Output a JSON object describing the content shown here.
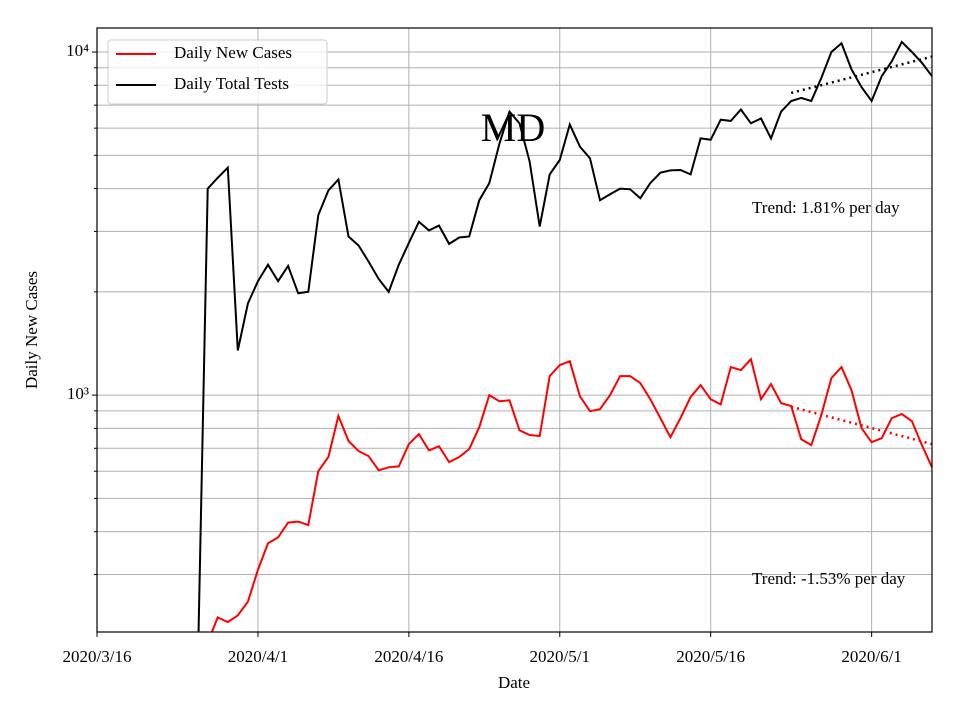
{
  "chart_data": {
    "type": "line",
    "title": "MD",
    "xlabel": "Date",
    "ylabel": "Daily New Cases",
    "yscale": "log",
    "grid": true,
    "legend": "upper left",
    "xlim": [
      "2020/3/16",
      "2020/6/7"
    ],
    "xticks": [
      "2020/3/16",
      "2020/4/1",
      "2020/4/16",
      "2020/5/1",
      "2020/5/16",
      "2020/6/1"
    ],
    "ylim": [
      204,
      11750
    ],
    "yticks": [
      {
        "value": 1000,
        "label": "10³"
      },
      {
        "value": 10000,
        "label": "10⁴"
      }
    ],
    "yminorticks": [
      300,
      400,
      500,
      600,
      700,
      800,
      900,
      2000,
      3000,
      4000,
      5000,
      6000,
      7000,
      8000,
      9000
    ],
    "x": [
      "2020/3/26",
      "2020/3/27",
      "2020/3/28",
      "2020/3/29",
      "2020/3/30",
      "2020/3/31",
      "2020/4/1",
      "2020/4/2",
      "2020/4/3",
      "2020/4/4",
      "2020/4/5",
      "2020/4/6",
      "2020/4/7",
      "2020/4/8",
      "2020/4/9",
      "2020/4/10",
      "2020/4/11",
      "2020/4/12",
      "2020/4/13",
      "2020/4/14",
      "2020/4/15",
      "2020/4/16",
      "2020/4/17",
      "2020/4/18",
      "2020/4/19",
      "2020/4/20",
      "2020/4/21",
      "2020/4/22",
      "2020/4/23",
      "2020/4/24",
      "2020/4/25",
      "2020/4/26",
      "2020/4/27",
      "2020/4/28",
      "2020/4/29",
      "2020/4/30",
      "2020/5/1",
      "2020/5/2",
      "2020/5/3",
      "2020/5/4",
      "2020/5/5",
      "2020/5/6",
      "2020/5/7",
      "2020/5/8",
      "2020/5/9",
      "2020/5/10",
      "2020/5/11",
      "2020/5/12",
      "2020/5/13",
      "2020/5/14",
      "2020/5/15",
      "2020/5/16",
      "2020/5/17",
      "2020/5/18",
      "2020/5/19",
      "2020/5/20",
      "2020/5/21",
      "2020/5/22",
      "2020/5/23",
      "2020/5/24",
      "2020/5/25",
      "2020/5/26",
      "2020/5/27",
      "2020/5/28",
      "2020/5/29",
      "2020/5/30",
      "2020/5/31",
      "2020/6/1",
      "2020/6/2",
      "2020/6/3",
      "2020/6/4",
      "2020/6/5",
      "2020/6/6",
      "2020/6/7"
    ],
    "series": [
      {
        "name": "Daily New Cases",
        "color": "#ff0000",
        "values": [
          null,
          190,
          225,
          218,
          228,
          250,
          310,
          370,
          385,
          425,
          428,
          418,
          600,
          660,
          870,
          735,
          687,
          664,
          604,
          616,
          620,
          720,
          770,
          690,
          710,
          638,
          660,
          696,
          807,
          1000,
          960,
          966,
          790,
          765,
          760,
          1136,
          1223,
          1256,
          993,
          898,
          910,
          1000,
          1136,
          1136,
          1084,
          973,
          857,
          754,
          857,
          987,
          1070,
          973,
          940,
          1207,
          1183,
          1273,
          973,
          1077,
          948,
          929,
          744,
          715,
          874,
          1121,
          1207,
          1034,
          801,
          729,
          749,
          857,
          881,
          840,
          715,
          616
        ]
      },
      {
        "name": "Daily Total Tests",
        "color": "#000000",
        "values": [
          150,
          4000,
          4300,
          4600,
          1350,
          1850,
          2150,
          2400,
          2150,
          2380,
          1980,
          2000,
          3350,
          3950,
          4250,
          2900,
          2730,
          2450,
          2180,
          2000,
          2400,
          2780,
          3200,
          3020,
          3120,
          2760,
          2880,
          2900,
          3700,
          4150,
          5400,
          6700,
          6200,
          4800,
          3100,
          4400,
          4850,
          6150,
          5300,
          4900,
          3700,
          3850,
          4000,
          3980,
          3750,
          4150,
          4450,
          4520,
          4530,
          4400,
          5600,
          5550,
          6350,
          6300,
          6800,
          6200,
          6400,
          5600,
          6700,
          7200,
          7350,
          7200,
          8400,
          10000,
          10600,
          8900,
          7900,
          7200,
          8500,
          9400,
          10700,
          10000,
          9300,
          8500
        ]
      }
    ],
    "trend_lines": [
      {
        "color": "#000000",
        "x": [
          "2020/5/24",
          "2020/6/7"
        ],
        "values": [
          7600,
          9700
        ],
        "label": "Trend: 1.81% per day"
      },
      {
        "color": "#ff0000",
        "x": [
          "2020/5/24",
          "2020/6/7"
        ],
        "values": [
          925,
          720
        ],
        "label": "Trend: -1.53% per day"
      }
    ]
  }
}
